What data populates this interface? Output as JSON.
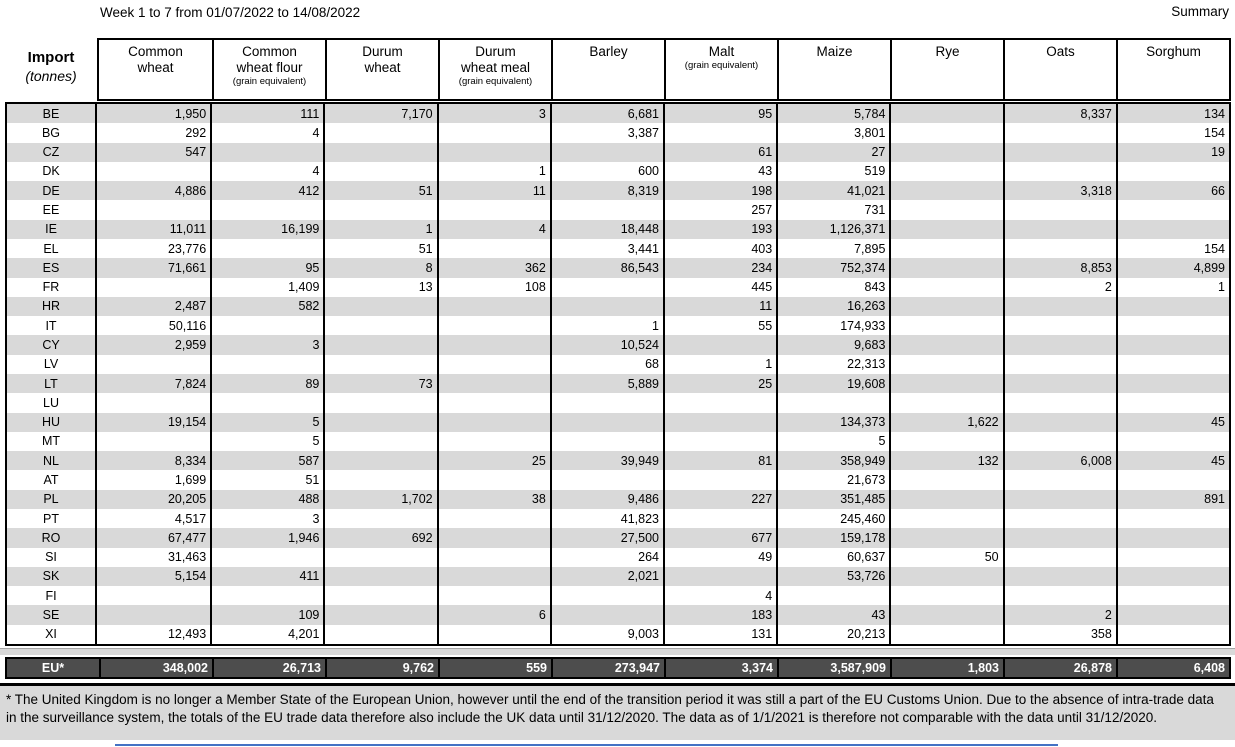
{
  "header": {
    "title": "Week 1 to 7 from 01/07/2022 to 14/08/2022",
    "summary_label": "Summary"
  },
  "table": {
    "corner": {
      "label": "Import",
      "unit": "(tonnes)"
    },
    "columns": [
      {
        "label": "Common\nwheat",
        "sub": ""
      },
      {
        "label": "Common\nwheat flour",
        "sub": "(grain equivalent)"
      },
      {
        "label": "Durum\nwheat",
        "sub": ""
      },
      {
        "label": "Durum\nwheat meal",
        "sub": "(grain equivalent)"
      },
      {
        "label": "Barley",
        "sub": ""
      },
      {
        "label": "Malt",
        "sub": "(grain equivalent)"
      },
      {
        "label": "Maize",
        "sub": ""
      },
      {
        "label": "Rye",
        "sub": ""
      },
      {
        "label": "Oats",
        "sub": ""
      },
      {
        "label": "Sorghum",
        "sub": ""
      }
    ],
    "rows": [
      {
        "code": "BE",
        "values": [
          "1,950",
          "111",
          "7,170",
          "3",
          "6,681",
          "95",
          "5,784",
          "",
          "8,337",
          "134"
        ]
      },
      {
        "code": "BG",
        "values": [
          "292",
          "4",
          "",
          "",
          "3,387",
          "",
          "3,801",
          "",
          "",
          "154"
        ]
      },
      {
        "code": "CZ",
        "values": [
          "547",
          "",
          "",
          "",
          "",
          "61",
          "27",
          "",
          "",
          "19"
        ]
      },
      {
        "code": "DK",
        "values": [
          "",
          "4",
          "",
          "1",
          "600",
          "43",
          "519",
          "",
          "",
          ""
        ]
      },
      {
        "code": "DE",
        "values": [
          "4,886",
          "412",
          "51",
          "11",
          "8,319",
          "198",
          "41,021",
          "",
          "3,318",
          "66"
        ]
      },
      {
        "code": "EE",
        "values": [
          "",
          "",
          "",
          "",
          "",
          "257",
          "731",
          "",
          "",
          ""
        ]
      },
      {
        "code": "IE",
        "values": [
          "11,011",
          "16,199",
          "1",
          "4",
          "18,448",
          "193",
          "1,126,371",
          "",
          "",
          ""
        ]
      },
      {
        "code": "EL",
        "values": [
          "23,776",
          "",
          "51",
          "",
          "3,441",
          "403",
          "7,895",
          "",
          "",
          "154"
        ]
      },
      {
        "code": "ES",
        "values": [
          "71,661",
          "95",
          "8",
          "362",
          "86,543",
          "234",
          "752,374",
          "",
          "8,853",
          "4,899"
        ]
      },
      {
        "code": "FR",
        "values": [
          "",
          "1,409",
          "13",
          "108",
          "",
          "445",
          "843",
          "",
          "2",
          "1"
        ]
      },
      {
        "code": "HR",
        "values": [
          "2,487",
          "582",
          "",
          "",
          "",
          "11",
          "16,263",
          "",
          "",
          ""
        ]
      },
      {
        "code": "IT",
        "values": [
          "50,116",
          "",
          "",
          "",
          "1",
          "55",
          "174,933",
          "",
          "",
          ""
        ]
      },
      {
        "code": "CY",
        "values": [
          "2,959",
          "3",
          "",
          "",
          "10,524",
          "",
          "9,683",
          "",
          "",
          ""
        ]
      },
      {
        "code": "LV",
        "values": [
          "",
          "",
          "",
          "",
          "68",
          "1",
          "22,313",
          "",
          "",
          ""
        ]
      },
      {
        "code": "LT",
        "values": [
          "7,824",
          "89",
          "73",
          "",
          "5,889",
          "25",
          "19,608",
          "",
          "",
          ""
        ]
      },
      {
        "code": "LU",
        "values": [
          "",
          "",
          "",
          "",
          "",
          "",
          "",
          "",
          "",
          ""
        ]
      },
      {
        "code": "HU",
        "values": [
          "19,154",
          "5",
          "",
          "",
          "",
          "",
          "134,373",
          "1,622",
          "",
          "45"
        ]
      },
      {
        "code": "MT",
        "values": [
          "",
          "5",
          "",
          "",
          "",
          "",
          "5",
          "",
          "",
          ""
        ]
      },
      {
        "code": "NL",
        "values": [
          "8,334",
          "587",
          "",
          "25",
          "39,949",
          "81",
          "358,949",
          "132",
          "6,008",
          "45"
        ]
      },
      {
        "code": "AT",
        "values": [
          "1,699",
          "51",
          "",
          "",
          "",
          "",
          "21,673",
          "",
          "",
          ""
        ]
      },
      {
        "code": "PL",
        "values": [
          "20,205",
          "488",
          "1,702",
          "38",
          "9,486",
          "227",
          "351,485",
          "",
          "",
          "891"
        ]
      },
      {
        "code": "PT",
        "values": [
          "4,517",
          "3",
          "",
          "",
          "41,823",
          "",
          "245,460",
          "",
          "",
          ""
        ]
      },
      {
        "code": "RO",
        "values": [
          "67,477",
          "1,946",
          "692",
          "",
          "27,500",
          "677",
          "159,178",
          "",
          "",
          ""
        ]
      },
      {
        "code": "SI",
        "values": [
          "31,463",
          "",
          "",
          "",
          "264",
          "49",
          "60,637",
          "50",
          "",
          ""
        ]
      },
      {
        "code": "SK",
        "values": [
          "5,154",
          "411",
          "",
          "",
          "2,021",
          "",
          "53,726",
          "",
          "",
          ""
        ]
      },
      {
        "code": "FI",
        "values": [
          "",
          "",
          "",
          "",
          "",
          "4",
          "",
          "",
          "",
          ""
        ]
      },
      {
        "code": "SE",
        "values": [
          "",
          "109",
          "",
          "6",
          "",
          "183",
          "43",
          "",
          "2",
          ""
        ]
      },
      {
        "code": "XI",
        "values": [
          "12,493",
          "4,201",
          "",
          "",
          "9,003",
          "131",
          "20,213",
          "",
          "358",
          ""
        ]
      }
    ],
    "total": {
      "code": "EU*",
      "values": [
        "348,002",
        "26,713",
        "9,762",
        "559",
        "273,947",
        "3,374",
        "3,587,909",
        "1,803",
        "26,878",
        "6,408"
      ]
    }
  },
  "footnote": "* The United Kingdom is no longer a Member State of the European Union, however until the end of the transition period it was still a part of the EU Customs Union. Due to the absence of intra-trade data in the surveillance system, the totals of the EU trade data  therefore also include the UK data until 31/12/2020. The data as of 1/1/2021 is therefore not comparable with the data until 31/12/2020.",
  "colors": {
    "row_band": "#d9d9d9",
    "total_row_bg": "#4d4d4d",
    "total_row_text": "#ffffff",
    "border": "#000000",
    "footnote_bg": "#d9d9d9",
    "accent_line": "#4472c4"
  }
}
